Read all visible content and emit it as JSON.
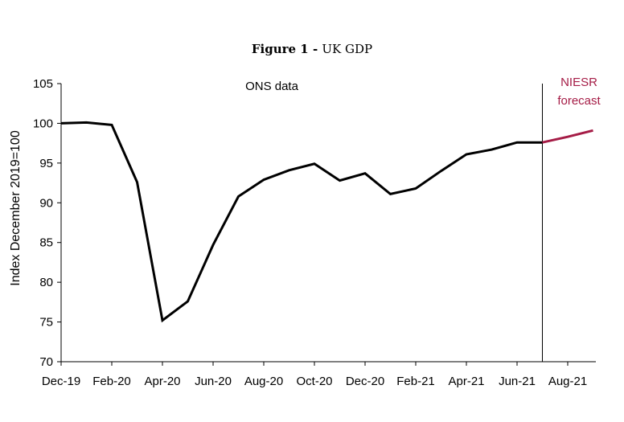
{
  "figure": {
    "number_label": "Figure 1",
    "separator": " - ",
    "title": "UK GDP"
  },
  "chart_data": {
    "type": "line",
    "title": "Figure 1 - UK GDP",
    "xlabel": "",
    "ylabel": "Index December 2019=100",
    "ylim": [
      70,
      105
    ],
    "yticks": [
      70,
      75,
      80,
      85,
      90,
      95,
      100,
      105
    ],
    "xtick_labels": [
      "Dec-19",
      "Feb-20",
      "Apr-20",
      "Jun-20",
      "Aug-20",
      "Oct-20",
      "Dec-20",
      "Feb-21",
      "Apr-21",
      "Jun-21",
      "Aug-21"
    ],
    "months": [
      "Dec-19",
      "Jan-20",
      "Feb-20",
      "Mar-20",
      "Apr-20",
      "May-20",
      "Jun-20",
      "Jul-20",
      "Aug-20",
      "Sep-20",
      "Oct-20",
      "Nov-20",
      "Dec-20",
      "Jan-21",
      "Feb-21",
      "Mar-21",
      "Apr-21",
      "May-21",
      "Jun-21",
      "Jul-21",
      "Aug-21",
      "Sep-21"
    ],
    "series": [
      {
        "name": "ONS data",
        "color": "#000000",
        "values": [
          100.0,
          100.1,
          99.8,
          92.6,
          75.2,
          77.6,
          84.7,
          90.8,
          92.9,
          94.1,
          94.9,
          92.8,
          93.7,
          91.1,
          91.8,
          94.0,
          96.1,
          96.7,
          97.6,
          97.6,
          null,
          null
        ]
      },
      {
        "name": "NIESR forecast",
        "color": "#a51c46",
        "values": [
          null,
          null,
          null,
          null,
          null,
          null,
          null,
          null,
          null,
          null,
          null,
          null,
          null,
          null,
          null,
          null,
          null,
          null,
          null,
          97.6,
          98.3,
          99.1
        ]
      }
    ],
    "divider_after_month": "Jul-21",
    "annotations": {
      "ons": "ONS data",
      "niesr_line1": "NIESR",
      "niesr_line2": "forecast"
    }
  }
}
